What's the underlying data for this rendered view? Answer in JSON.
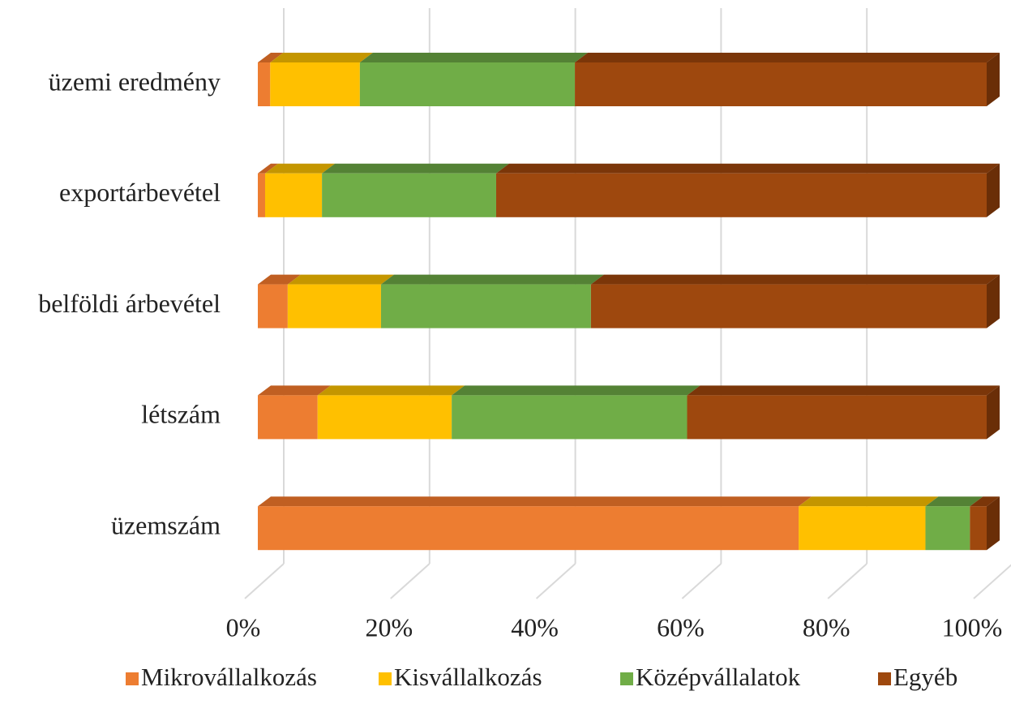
{
  "chart_data": {
    "type": "bar3d_stacked_percent_horizontal",
    "categories": [
      "üzemi eredmény",
      "exportárbevétel",
      "belföldi árbevétel",
      "létszám",
      "üzemszám"
    ],
    "series": [
      {
        "name": "Mikrovállalkozás",
        "color": "#ED7D31",
        "top_color": "#C05F22",
        "values": [
          1.7,
          1.0,
          4.1,
          8.2,
          74.2
        ]
      },
      {
        "name": "Kisvállalkozás",
        "color": "#FFC000",
        "top_color": "#C49600",
        "values": [
          12.3,
          7.8,
          12.8,
          18.4,
          17.4
        ]
      },
      {
        "name": "Középvállalatok",
        "color": "#70AD47",
        "top_color": "#548235",
        "values": [
          29.5,
          23.9,
          28.8,
          32.3,
          6.1
        ]
      },
      {
        "name": "Egyéb",
        "color": "#9E480E",
        "top_color": "#7B3609",
        "values": [
          56.5,
          67.3,
          54.3,
          41.1,
          2.3
        ]
      }
    ],
    "xlim": [
      0,
      100
    ],
    "xticks": [
      {
        "value": 0,
        "label": "0%"
      },
      {
        "value": 20,
        "label": "20%"
      },
      {
        "value": 40,
        "label": "40%"
      },
      {
        "value": 60,
        "label": "60%"
      },
      {
        "value": 80,
        "label": "80%"
      },
      {
        "value": 100,
        "label": "100%"
      }
    ],
    "grid": true,
    "legend": "bottom"
  }
}
